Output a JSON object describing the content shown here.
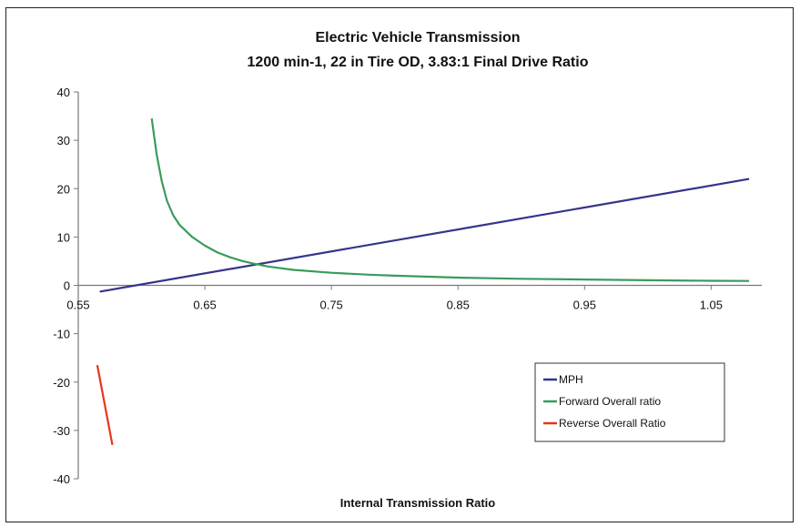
{
  "chart_data": {
    "type": "line",
    "title": "Electric Vehicle Transmission",
    "subtitle": "1200 min-1, 22 in Tire OD, 3.83:1 Final Drive Ratio",
    "xlabel": "Internal Transmission Ratio",
    "ylabel": "",
    "xlim": [
      0.55,
      1.09
    ],
    "ylim": [
      -40,
      40
    ],
    "x_ticks": [
      "0.55",
      "0.65",
      "0.75",
      "0.85",
      "0.95",
      "1.05"
    ],
    "y_ticks": [
      "40",
      "30",
      "20",
      "10",
      "0",
      "-10",
      "-20",
      "-30",
      "-40"
    ],
    "grid": false,
    "legend_position": "bottom-right",
    "series": [
      {
        "name": "MPH",
        "color": "#35348a",
        "x": [
          0.567,
          1.08
        ],
        "y": [
          -1.3,
          22
        ]
      },
      {
        "name": "Forward Overall ratio",
        "color": "#3a9b5c",
        "x": [
          0.608,
          0.612,
          0.616,
          0.62,
          0.625,
          0.63,
          0.64,
          0.65,
          0.66,
          0.67,
          0.68,
          0.69,
          0.7,
          0.72,
          0.75,
          0.78,
          0.8,
          0.85,
          0.9,
          0.95,
          1.0,
          1.05,
          1.08
        ],
        "y": [
          34.5,
          27,
          21.5,
          17.5,
          14.5,
          12.5,
          10,
          8.2,
          6.8,
          5.8,
          5.0,
          4.4,
          3.9,
          3.2,
          2.6,
          2.2,
          2.0,
          1.6,
          1.35,
          1.2,
          1.05,
          0.95,
          0.9
        ]
      },
      {
        "name": "Reverse Overall Ratio",
        "color": "#e8341c",
        "x": [
          0.565,
          0.577
        ],
        "y": [
          -16.5,
          -33
        ]
      }
    ]
  }
}
